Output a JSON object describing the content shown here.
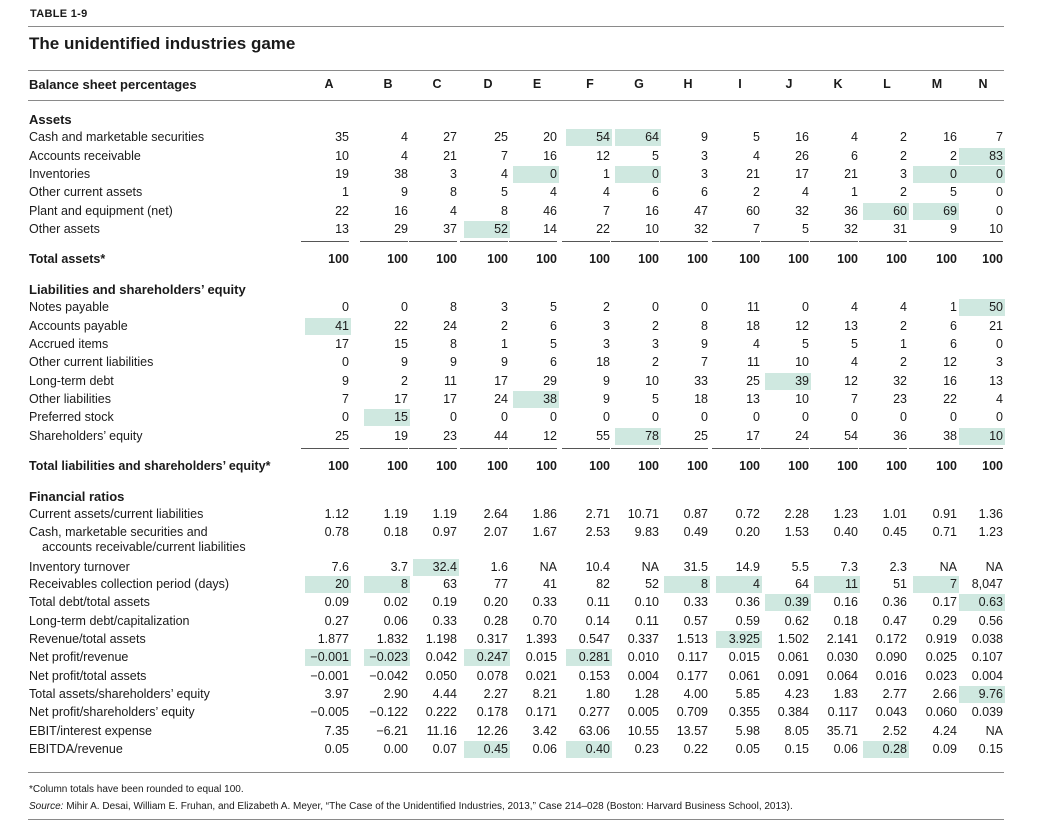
{
  "table_label": "TABLE 1-9",
  "title": "The unidentified industries game",
  "header_label": "Balance sheet percentages",
  "columns": [
    "A",
    "B",
    "C",
    "D",
    "E",
    "F",
    "G",
    "H",
    "I",
    "J",
    "K",
    "L",
    "M",
    "N"
  ],
  "highlight_color": "#cfe8e0",
  "sections": {
    "assets": "Assets",
    "liabilities": "Liabilities and shareholders’ equity",
    "ratios": "Financial ratios"
  },
  "rows": [
    {
      "label": "Cash and marketable securities",
      "values": [
        "35",
        "4",
        "27",
        "25",
        "20",
        "54",
        "64",
        "9",
        "5",
        "16",
        "4",
        "2",
        "16",
        "7"
      ],
      "hl": [
        5,
        6
      ]
    },
    {
      "label": "Accounts receivable",
      "values": [
        "10",
        "4",
        "21",
        "7",
        "16",
        "12",
        "5",
        "3",
        "4",
        "26",
        "6",
        "2",
        "2",
        "83"
      ],
      "hl": [
        13
      ]
    },
    {
      "label": "Inventories",
      "values": [
        "19",
        "38",
        "3",
        "4",
        "0",
        "1",
        "0",
        "3",
        "21",
        "17",
        "21",
        "3",
        "0",
        "0"
      ],
      "hl": [
        4,
        6,
        12,
        13
      ]
    },
    {
      "label": "Other current assets",
      "values": [
        "1",
        "9",
        "8",
        "5",
        "4",
        "4",
        "6",
        "6",
        "2",
        "4",
        "1",
        "2",
        "5",
        "0"
      ],
      "hl": []
    },
    {
      "label": "Plant and equipment (net)",
      "values": [
        "22",
        "16",
        "4",
        "8",
        "46",
        "7",
        "16",
        "47",
        "60",
        "32",
        "36",
        "60",
        "69",
        "0"
      ],
      "hl": [
        11,
        12
      ]
    },
    {
      "label": "Other assets",
      "values": [
        "13",
        "29",
        "37",
        "52",
        "14",
        "22",
        "10",
        "32",
        "7",
        "5",
        "32",
        "31",
        "9",
        "10"
      ],
      "hl": [
        3
      ]
    },
    {
      "label": "Total assets*",
      "values": [
        "100",
        "100",
        "100",
        "100",
        "100",
        "100",
        "100",
        "100",
        "100",
        "100",
        "100",
        "100",
        "100",
        "100"
      ],
      "hl": [],
      "bold": true
    },
    {
      "label": "Notes payable",
      "values": [
        "0",
        "0",
        "8",
        "3",
        "5",
        "2",
        "0",
        "0",
        "11",
        "0",
        "4",
        "4",
        "1",
        "50"
      ],
      "hl": [
        13
      ]
    },
    {
      "label": "Accounts payable",
      "values": [
        "41",
        "22",
        "24",
        "2",
        "6",
        "3",
        "2",
        "8",
        "18",
        "12",
        "13",
        "2",
        "6",
        "21"
      ],
      "hl": [
        0
      ]
    },
    {
      "label": "Accrued items",
      "values": [
        "17",
        "15",
        "8",
        "1",
        "5",
        "3",
        "3",
        "9",
        "4",
        "5",
        "5",
        "1",
        "6",
        "0"
      ],
      "hl": []
    },
    {
      "label": "Other current liabilities",
      "values": [
        "0",
        "9",
        "9",
        "9",
        "6",
        "18",
        "2",
        "7",
        "11",
        "10",
        "4",
        "2",
        "12",
        "3"
      ],
      "hl": []
    },
    {
      "label": "Long-term debt",
      "values": [
        "9",
        "2",
        "11",
        "17",
        "29",
        "9",
        "10",
        "33",
        "25",
        "39",
        "12",
        "32",
        "16",
        "13"
      ],
      "hl": [
        9
      ]
    },
    {
      "label": "Other liabilities",
      "values": [
        "7",
        "17",
        "17",
        "24",
        "38",
        "9",
        "5",
        "18",
        "13",
        "10",
        "7",
        "23",
        "22",
        "4"
      ],
      "hl": [
        4
      ]
    },
    {
      "label": "Preferred stock",
      "values": [
        "0",
        "15",
        "0",
        "0",
        "0",
        "0",
        "0",
        "0",
        "0",
        "0",
        "0",
        "0",
        "0",
        "0"
      ],
      "hl": [
        1
      ]
    },
    {
      "label": "Shareholders’ equity",
      "values": [
        "25",
        "19",
        "23",
        "44",
        "12",
        "55",
        "78",
        "25",
        "17",
        "24",
        "54",
        "36",
        "38",
        "10"
      ],
      "hl": [
        6,
        13
      ]
    },
    {
      "label": "Total liabilities and shareholders’ equity*",
      "values": [
        "100",
        "100",
        "100",
        "100",
        "100",
        "100",
        "100",
        "100",
        "100",
        "100",
        "100",
        "100",
        "100",
        "100"
      ],
      "hl": [],
      "bold": true
    },
    {
      "label": "Current assets/current liabilities",
      "values": [
        "1.12",
        "1.19",
        "1.19",
        "2.64",
        "1.86",
        "2.71",
        "10.71",
        "0.87",
        "0.72",
        "2.28",
        "1.23",
        "1.01",
        "0.91",
        "1.36"
      ],
      "hl": []
    },
    {
      "label": "Cash, marketable securities and",
      "label2": "accounts receivable/current liabilities",
      "values": [
        "0.78",
        "0.18",
        "0.97",
        "2.07",
        "1.67",
        "2.53",
        "9.83",
        "0.49",
        "0.20",
        "1.53",
        "0.40",
        "0.45",
        "0.71",
        "1.23"
      ],
      "hl": []
    },
    {
      "label": "Inventory turnover",
      "values": [
        "7.6",
        "3.7",
        "32.4",
        "1.6",
        "NA",
        "10.4",
        "NA",
        "31.5",
        "14.9",
        "5.5",
        "7.3",
        "2.3",
        "NA",
        "NA"
      ],
      "hl": [
        2
      ]
    },
    {
      "label": "Receivables collection period (days)",
      "values": [
        "20",
        "8",
        "63",
        "77",
        "41",
        "82",
        "52",
        "8",
        "4",
        "64",
        "11",
        "51",
        "7",
        "8,047"
      ],
      "hl": [
        0,
        1,
        7,
        8,
        10,
        12
      ]
    },
    {
      "label": "Total debt/total assets",
      "values": [
        "0.09",
        "0.02",
        "0.19",
        "0.20",
        "0.33",
        "0.11",
        "0.10",
        "0.33",
        "0.36",
        "0.39",
        "0.16",
        "0.36",
        "0.17",
        "0.63"
      ],
      "hl": [
        9,
        13
      ]
    },
    {
      "label": "Long-term debt/capitalization",
      "values": [
        "0.27",
        "0.06",
        "0.33",
        "0.28",
        "0.70",
        "0.14",
        "0.11",
        "0.57",
        "0.59",
        "0.62",
        "0.18",
        "0.47",
        "0.29",
        "0.56"
      ],
      "hl": []
    },
    {
      "label": "Revenue/total assets",
      "values": [
        "1.877",
        "1.832",
        "1.198",
        "0.317",
        "1.393",
        "0.547",
        "0.337",
        "1.513",
        "3.925",
        "1.502",
        "2.141",
        "0.172",
        "0.919",
        "0.038"
      ],
      "hl": [
        8
      ]
    },
    {
      "label": "Net profit/revenue",
      "values": [
        "−0.001",
        "−0.023",
        "0.042",
        "0.247",
        "0.015",
        "0.281",
        "0.010",
        "0.117",
        "0.015",
        "0.061",
        "0.030",
        "0.090",
        "0.025",
        "0.107"
      ],
      "hl": [
        0,
        1,
        3,
        5
      ]
    },
    {
      "label": "Net profit/total assets",
      "values": [
        "−0.001",
        "−0.042",
        "0.050",
        "0.078",
        "0.021",
        "0.153",
        "0.004",
        "0.177",
        "0.061",
        "0.091",
        "0.064",
        "0.016",
        "0.023",
        "0.004"
      ],
      "hl": []
    },
    {
      "label": "Total assets/shareholders’ equity",
      "values": [
        "3.97",
        "2.90",
        "4.44",
        "2.27",
        "8.21",
        "1.80",
        "1.28",
        "4.00",
        "5.85",
        "4.23",
        "1.83",
        "2.77",
        "2.66",
        "9.76"
      ],
      "hl": [
        13
      ]
    },
    {
      "label": "Net profit/shareholders’ equity",
      "values": [
        "−0.005",
        "−0.122",
        "0.222",
        "0.178",
        "0.171",
        "0.277",
        "0.005",
        "0.709",
        "0.355",
        "0.384",
        "0.117",
        "0.043",
        "0.060",
        "0.039"
      ],
      "hl": []
    },
    {
      "label": "EBIT/interest expense",
      "values": [
        "7.35",
        "−6.21",
        "11.16",
        "12.26",
        "3.42",
        "63.06",
        "10.55",
        "13.57",
        "5.98",
        "8.05",
        "35.71",
        "2.52",
        "4.24",
        "NA"
      ],
      "hl": []
    },
    {
      "label": "EBITDA/revenue",
      "values": [
        "0.05",
        "0.00",
        "0.07",
        "0.45",
        "0.06",
        "0.40",
        "0.23",
        "0.22",
        "0.05",
        "0.15",
        "0.06",
        "0.28",
        "0.09",
        "0.15"
      ],
      "hl": [
        3,
        5,
        11
      ]
    }
  ],
  "footnote": "*Column totals have been rounded to equal 100.",
  "source_label": "Source:",
  "source_text": "Mihir A. Desai, William E. Fruhan, and Elizabeth A. Meyer, “The Case of the Unidentified Industries, 2013,” Case 214–028 (Boston: Harvard Business School, 2013)."
}
